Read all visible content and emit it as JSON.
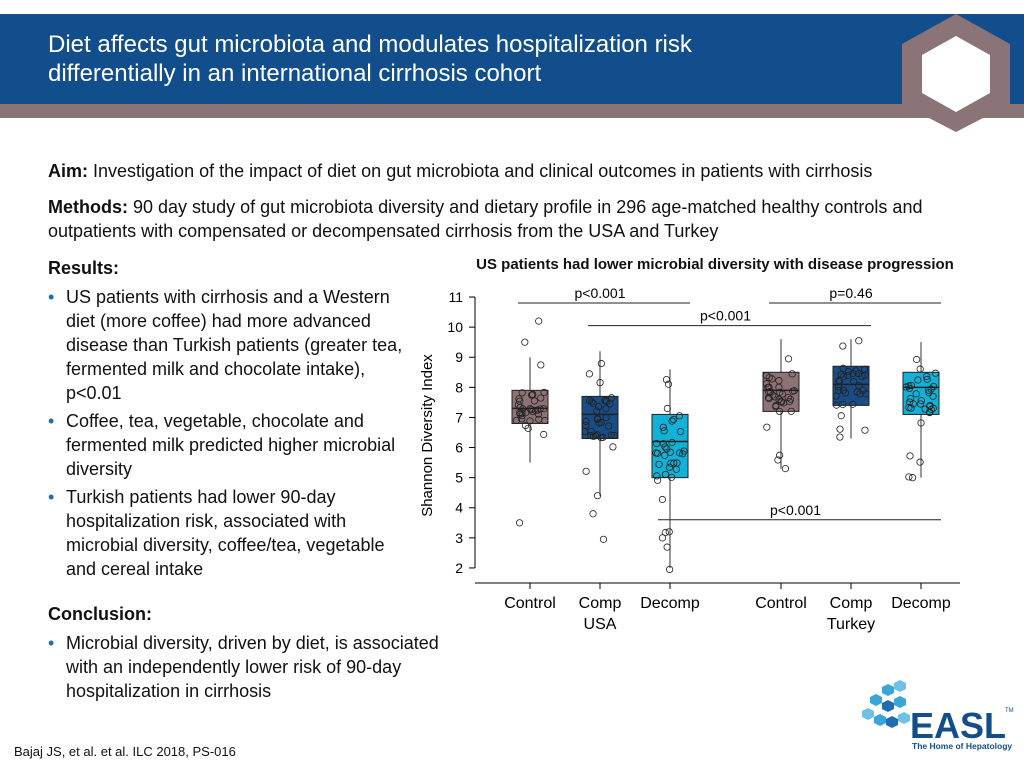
{
  "header": {
    "title_line1": "Diet affects gut microbiota and modulates hospitalization risk",
    "title_line2": "differentially in an international cirrhosis cohort"
  },
  "aim": {
    "label": "Aim:",
    "text": "Investigation of the impact of diet on gut microbiota and clinical outcomes in patients with cirrhosis"
  },
  "methods": {
    "label": "Methods:",
    "text": "90 day study of gut microbiota diversity and dietary profile in 296 age-matched healthy controls and outpatients with compensated or decompensated cirrhosis from the USA and Turkey"
  },
  "results": {
    "heading": "Results:",
    "bullets": [
      "US patients with cirrhosis and a Western diet (more coffee) had more advanced disease than Turkish patients (greater tea, fermented milk and chocolate intake), p<0.01",
      "Coffee, tea, vegetable, chocolate and fermented milk predicted higher microbial diversity",
      "Turkish patients had lower 90-day hospitalization risk, associated with microbial diversity, coffee/tea, vegetable and cereal intake"
    ]
  },
  "conclusion": {
    "heading": "Conclusion:",
    "bullets": [
      "Microbial diversity, driven by diet, is associated with an independently lower risk of 90-day hospitalization in cirrhosis"
    ]
  },
  "citation": "Bajaj JS, et al. et al. ILC 2018, PS-016",
  "logo": {
    "text": "EASL",
    "tagline": "The Home of Hepatology",
    "tm": "TM"
  },
  "chart_data": {
    "type": "box",
    "title": "US patients had lower microbial diversity with disease progression",
    "ylabel": "Shannon Diversity Index",
    "ylim": [
      1.5,
      11.3
    ],
    "yticks": [
      2,
      3,
      4,
      5,
      6,
      7,
      8,
      9,
      10,
      11
    ],
    "groups": [
      "USA",
      "Turkey"
    ],
    "categories": [
      "Control",
      "Comp",
      "Decomp",
      "Control",
      "Comp",
      "Decomp"
    ],
    "boxes": [
      {
        "group": "USA",
        "category": "Control",
        "color": "#8e7276",
        "min": 5.5,
        "q1": 6.8,
        "median": 7.3,
        "q3": 7.9,
        "max": 9.0,
        "outliers": [
          10.2,
          9.5,
          3.5
        ]
      },
      {
        "group": "USA",
        "category": "Comp",
        "color": "#1a4c85",
        "min": 4.4,
        "q1": 6.3,
        "median": 7.1,
        "q3": 7.7,
        "max": 9.2,
        "outliers": [
          4.4,
          3.8,
          2.95
        ]
      },
      {
        "group": "USA",
        "category": "Decomp",
        "color": "#12b2d8",
        "min": 2.0,
        "q1": 5.0,
        "median": 6.2,
        "q3": 7.1,
        "max": 8.6,
        "outliers": [
          3.2,
          3.0,
          1.95
        ]
      },
      {
        "group": "Turkey",
        "category": "Control",
        "color": "#8e7276",
        "min": 5.3,
        "q1": 7.2,
        "median": 7.9,
        "q3": 8.5,
        "max": 9.6,
        "outliers": [
          5.3
        ]
      },
      {
        "group": "Turkey",
        "category": "Comp",
        "color": "#1a4c85",
        "min": 6.3,
        "q1": 7.4,
        "median": 8.1,
        "q3": 8.7,
        "max": 9.6,
        "outliers": []
      },
      {
        "group": "Turkey",
        "category": "Decomp",
        "color": "#12b2d8",
        "min": 5.0,
        "q1": 7.1,
        "median": 8.0,
        "q3": 8.5,
        "max": 9.5,
        "outliers": [
          5.0
        ]
      }
    ],
    "annotations": [
      {
        "text": "p<0.001",
        "from": 0,
        "to": 2,
        "y": 10.8
      },
      {
        "text": "p=0.46",
        "from": 3,
        "to": 5,
        "y": 10.8
      },
      {
        "text": "p<0.001",
        "from": 1,
        "to": 4,
        "y": 10.05
      },
      {
        "text": "p<0.001",
        "from": 2,
        "to": 5,
        "y": 3.6
      }
    ]
  }
}
